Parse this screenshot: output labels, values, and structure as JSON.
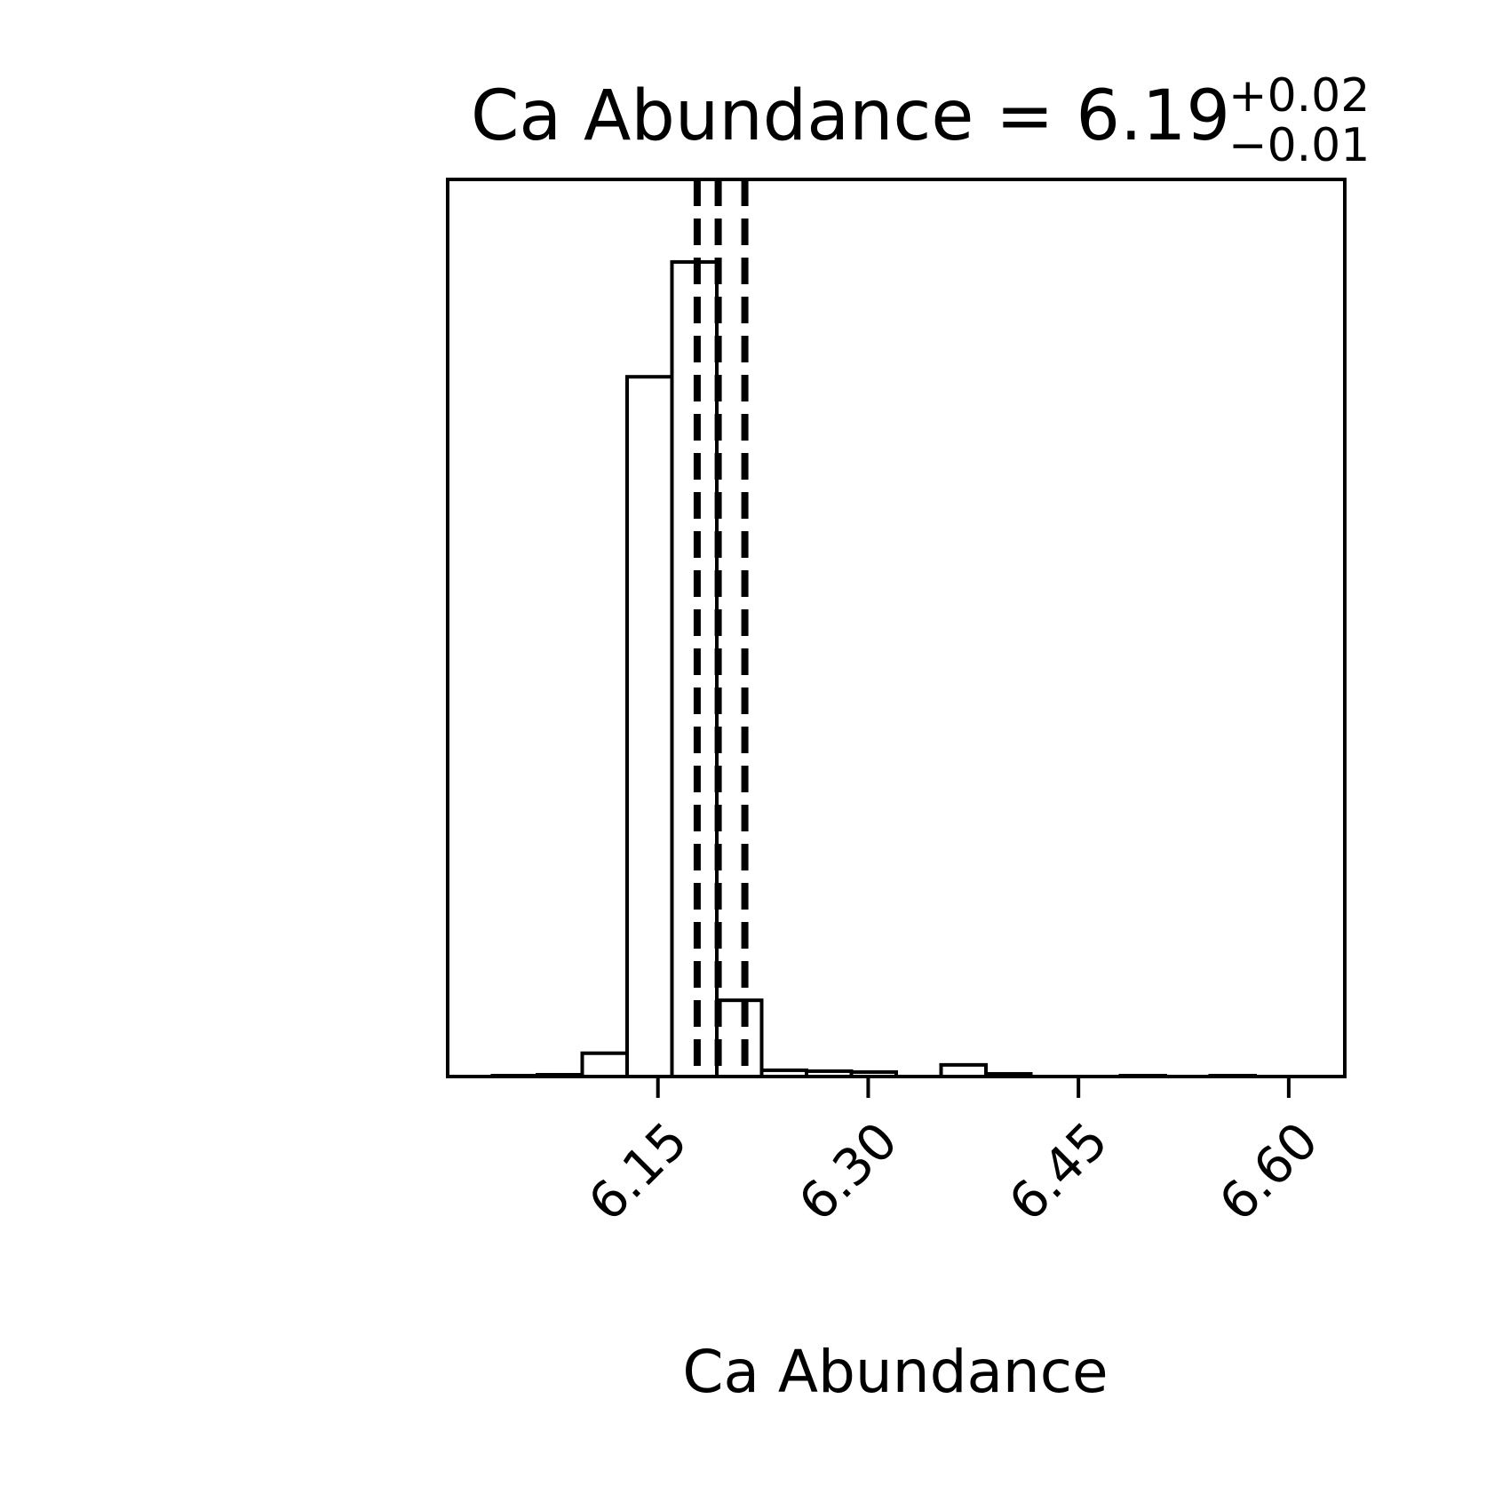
{
  "chart_data": {
    "type": "bar",
    "title": {
      "main": "Ca Abundance = 6.19",
      "sup": "+0.02",
      "sub": "−0.01"
    },
    "xlabel": "Ca Abundance",
    "ylabel": "",
    "xlim": [
      6.0,
      6.64
    ],
    "ylim": [
      0,
      1.0
    ],
    "xticks": [
      6.15,
      6.3,
      6.45,
      6.6
    ],
    "xtick_labels": [
      "6.15",
      "6.30",
      "6.45",
      "6.60"
    ],
    "bin_edges": [
      6.0,
      6.032,
      6.064,
      6.096,
      6.128,
      6.16,
      6.192,
      6.224,
      6.256,
      6.288,
      6.32,
      6.352,
      6.384,
      6.416,
      6.448,
      6.48,
      6.512,
      6.544,
      6.576,
      6.608,
      6.64
    ],
    "values": [
      0.0,
      0.001,
      0.002,
      0.026,
      0.78,
      0.908,
      0.085,
      0.007,
      0.006,
      0.005,
      0.0,
      0.013,
      0.003,
      0.0,
      0.0,
      0.001,
      0.0,
      0.001,
      0.0,
      0.0
    ],
    "quantile_lines": [
      6.178,
      6.193,
      6.212
    ],
    "grid": false,
    "line_color": "#000000"
  }
}
